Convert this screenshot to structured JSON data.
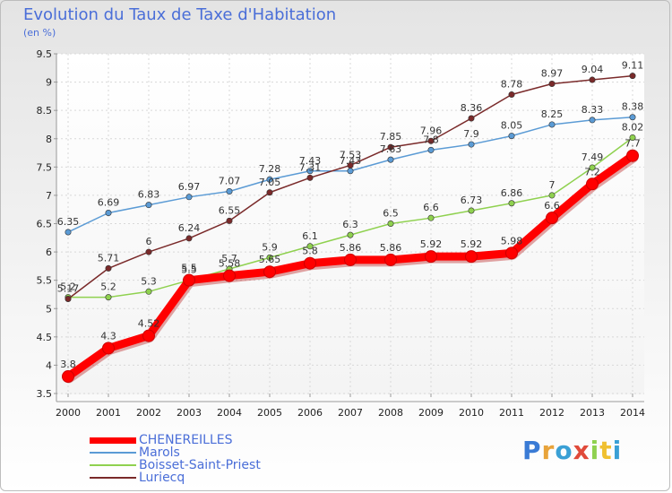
{
  "title": "Evolution du Taux de Taxe d'Habitation",
  "subtitle": "(en %)",
  "logo": "Proxiti",
  "chart_data": {
    "type": "line",
    "x": [
      2000,
      2001,
      2002,
      2003,
      2004,
      2005,
      2006,
      2007,
      2008,
      2009,
      2010,
      2011,
      2012,
      2013,
      2014
    ],
    "ylim": [
      3.5,
      9.5
    ],
    "yticks": [
      3.5,
      4,
      4.5,
      5,
      5.5,
      6,
      6.5,
      7,
      7.5,
      8,
      8.5,
      9,
      9.5
    ],
    "grid": true,
    "legend_position": "bottom-left",
    "series": [
      {
        "name": "CHENEREILLES",
        "color": "#ff0000",
        "values": [
          3.8,
          4.3,
          4.52,
          5.5,
          5.58,
          5.65,
          5.8,
          5.86,
          5.86,
          5.92,
          5.92,
          5.98,
          6.6,
          7.2,
          7.7
        ],
        "labels": [
          "3.8",
          "4.3",
          "4.52",
          "5.5",
          "5.58",
          "5.65",
          "5.8",
          "5.86",
          "5.86",
          "5.92",
          "5.92",
          "5.98",
          "6.6",
          "7.2",
          "7.7"
        ]
      },
      {
        "name": "Marols",
        "color": "#5b9bd5",
        "values": [
          6.35,
          6.69,
          6.83,
          6.97,
          7.07,
          7.28,
          7.43,
          7.43,
          7.63,
          7.8,
          7.9,
          8.05,
          8.25,
          8.33,
          8.38
        ],
        "labels": [
          "6.35",
          "6.69",
          "6.83",
          "6.97",
          "7.07",
          "7.28",
          "7.43",
          "7.43",
          "7.63",
          "7.8",
          "7.9",
          "8.05",
          "8.25",
          "8.33",
          "8.38"
        ]
      },
      {
        "name": "Boisset-Saint-Priest",
        "color": "#8fd14f",
        "values": [
          5.2,
          5.2,
          5.3,
          5.5,
          5.7,
          5.9,
          6.1,
          6.3,
          6.5,
          6.6,
          6.73,
          6.86,
          7.0,
          7.49,
          8.02
        ],
        "labels": [
          "5.2",
          "5.2",
          "5.3",
          "5.5",
          "5.7",
          "5.9",
          "6.1",
          "6.3",
          "6.5",
          "6.6",
          "6.73",
          "6.86",
          "7",
          "7.49",
          "8.02"
        ]
      },
      {
        "name": "Luriecq",
        "color": "#7a2a2a",
        "values": [
          5.17,
          5.71,
          6.0,
          6.24,
          6.55,
          7.05,
          7.31,
          7.53,
          7.85,
          7.96,
          8.36,
          8.78,
          8.97,
          9.04,
          9.11
        ],
        "labels": [
          "5.17",
          "5.71",
          "6",
          "6.24",
          "6.55",
          "7.05",
          "7.31",
          "7.53",
          "7.85",
          "7.96",
          "8.36",
          "8.78",
          "8.97",
          "9.04",
          "9.11"
        ]
      }
    ]
  }
}
